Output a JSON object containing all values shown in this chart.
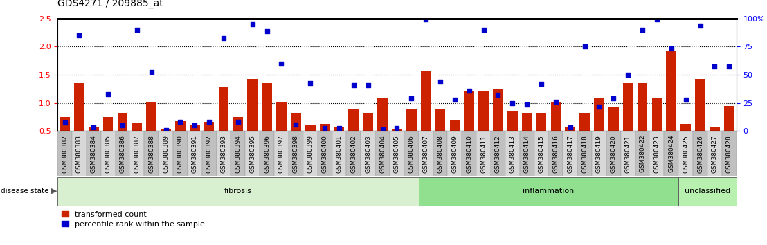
{
  "title": "GDS4271 / 209885_at",
  "samples": [
    "GSM380382",
    "GSM380383",
    "GSM380384",
    "GSM380385",
    "GSM380386",
    "GSM380387",
    "GSM380388",
    "GSM380389",
    "GSM380390",
    "GSM380391",
    "GSM380392",
    "GSM380393",
    "GSM380394",
    "GSM380395",
    "GSM380396",
    "GSM380397",
    "GSM380398",
    "GSM380399",
    "GSM380400",
    "GSM380401",
    "GSM380402",
    "GSM380403",
    "GSM380404",
    "GSM380405",
    "GSM380406",
    "GSM380407",
    "GSM380408",
    "GSM380409",
    "GSM380410",
    "GSM380411",
    "GSM380412",
    "GSM380413",
    "GSM380414",
    "GSM380415",
    "GSM380416",
    "GSM380417",
    "GSM380418",
    "GSM380419",
    "GSM380420",
    "GSM380421",
    "GSM380422",
    "GSM380423",
    "GSM380424",
    "GSM380425",
    "GSM380426",
    "GSM380427",
    "GSM380428"
  ],
  "bar_values": [
    0.75,
    1.35,
    0.57,
    0.75,
    0.82,
    0.65,
    1.02,
    0.53,
    0.68,
    0.6,
    0.67,
    1.28,
    0.75,
    1.42,
    1.35,
    1.02,
    0.83,
    0.62,
    0.63,
    0.57,
    0.88,
    0.83,
    1.08,
    0.53,
    0.9,
    1.57,
    0.9,
    0.7,
    1.22,
    1.2,
    1.25,
    0.85,
    0.83,
    0.83,
    1.02,
    0.57,
    0.83,
    1.08,
    0.92,
    1.35,
    1.35,
    1.1,
    1.92,
    0.63,
    1.43,
    0.58,
    0.95
  ],
  "dot_values": [
    0.65,
    2.2,
    0.57,
    1.15,
    0.6,
    2.3,
    1.55,
    0.52,
    0.67,
    0.6,
    0.67,
    2.15,
    0.67,
    2.4,
    2.27,
    1.7,
    0.62,
    1.35,
    0.55,
    0.55,
    1.32,
    1.32,
    0.53,
    0.55,
    1.08,
    2.48,
    1.38,
    1.06,
    1.22,
    2.3,
    1.14,
    1.0,
    0.97,
    1.34,
    1.02,
    0.57,
    2.0,
    0.93,
    1.08,
    1.5,
    2.3,
    2.48,
    1.97,
    1.06,
    2.37,
    1.65,
    1.65
  ],
  "groups": [
    {
      "label": "fibrosis",
      "start": 0,
      "end": 25,
      "color": "#d8f0d0"
    },
    {
      "label": "inflammation",
      "start": 25,
      "end": 43,
      "color": "#90e090"
    },
    {
      "label": "unclassified",
      "start": 43,
      "end": 47,
      "color": "#b8f0b0"
    }
  ],
  "bar_color": "#cc2200",
  "dot_color": "#0000cc",
  "ylim_left": [
    0.5,
    2.5
  ],
  "yticks_left": [
    0.5,
    1.0,
    1.5,
    2.0,
    2.5
  ],
  "ylim_right": [
    0,
    100
  ],
  "yticks_right": [
    0,
    25,
    50,
    75,
    100
  ],
  "title_fontsize": 10,
  "tick_fontsize": 6.5,
  "label_fontsize": 8
}
